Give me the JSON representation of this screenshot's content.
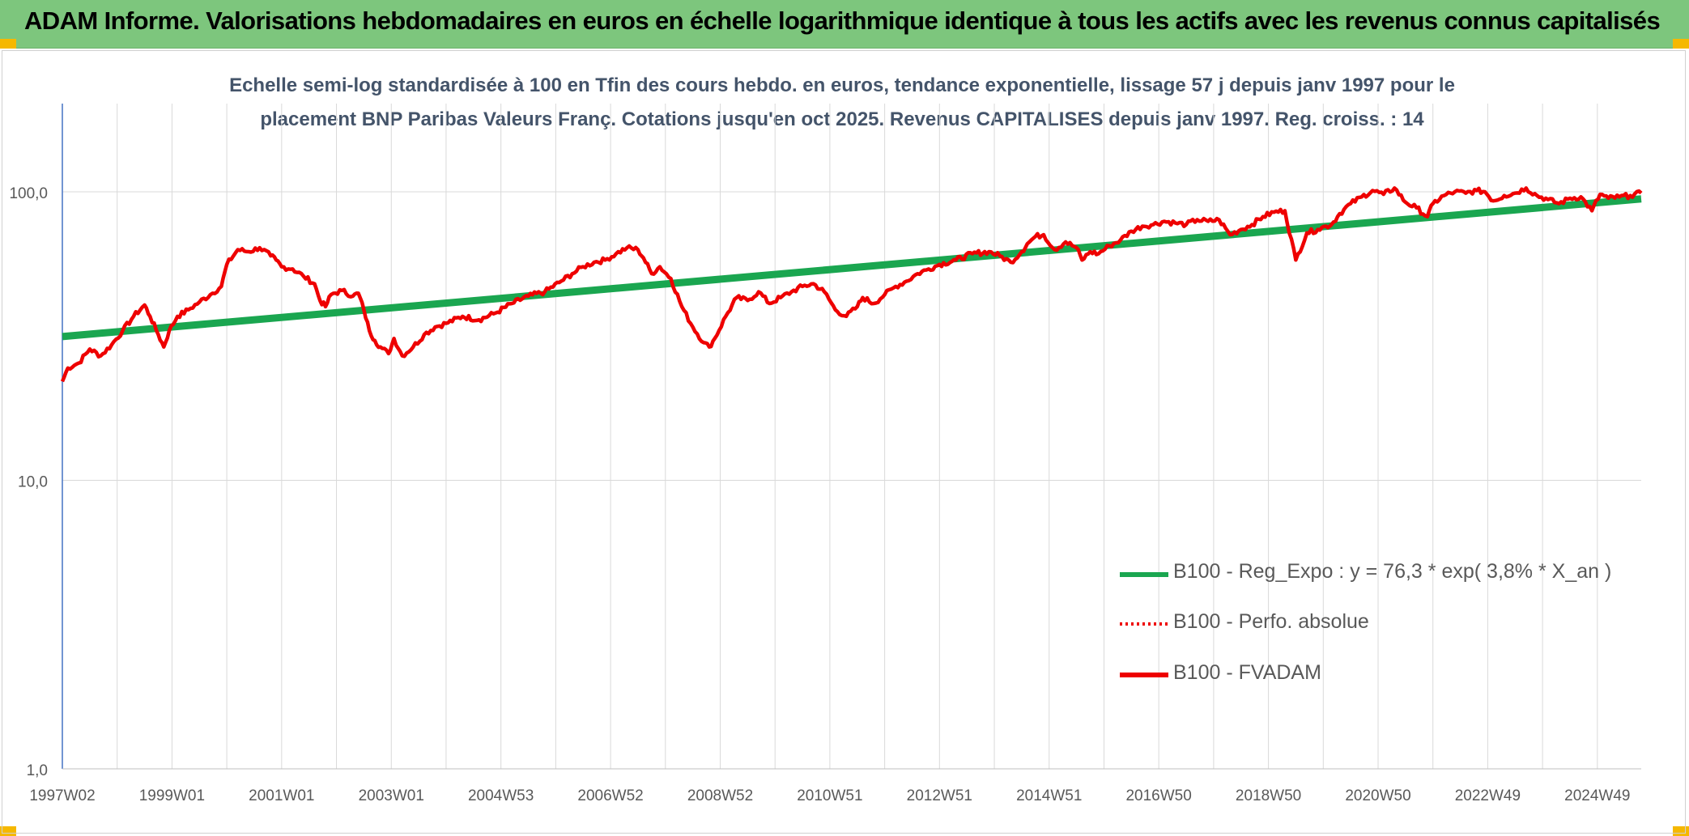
{
  "header": {
    "title": "ADAM Informe. Valorisations hebdomadaires en euros en échelle logarithmique identique à tous les actifs avec les revenus connus capitalisés"
  },
  "colors": {
    "banner": "#7dc67d",
    "accent": "#f5b800",
    "regression": "#1aa650",
    "fvadam": "#ee0000",
    "perfo": "#ee0000",
    "axis": "#4472c4",
    "grid": "#d9d9d9",
    "subtitle": "#44546a"
  },
  "chart_data": {
    "type": "line",
    "subtitle_line1": "Echelle semi-log standardisée à 100 en Tfin des cours hebdo. en euros, tendance exponentielle, lissage 57 j depuis janv 1997 pour le",
    "subtitle_line2": "placement BNP Paribas Valeurs Franç. Cotations jusqu'en oct 2025. Revenus CAPITALISES depuis janv 1997. Reg. croiss. : 14",
    "yscale": "log",
    "ylim": [
      1,
      200
    ],
    "y_ticks": [
      1,
      10,
      100
    ],
    "y_tick_labels": [
      "1,0",
      "10,0",
      "100,0"
    ],
    "xlim": [
      1997.0,
      2025.8
    ],
    "x_ticks": [
      1997.0,
      1999.0,
      2001.0,
      2003.0,
      2005.0,
      2007.0,
      2009.0,
      2011.0,
      2013.0,
      2015.0,
      2017.0,
      2019.0,
      2021.0,
      2023.0,
      2025.0
    ],
    "x_tick_labels": [
      "1997W02",
      "1999W01",
      "2001W01",
      "2003W01",
      "2004W53",
      "2006W52",
      "2008W52",
      "2010W51",
      "2012W51",
      "2014W51",
      "2016W50",
      "2018W50",
      "2020W50",
      "2022W49",
      "2024W49"
    ],
    "grid": true,
    "legend": "bottom-right",
    "series": [
      {
        "name": "B100 - Reg_Expo : y = 76,3 * exp( 3,8% *  X_an )",
        "style": "solid-thick",
        "color": "#1aa650",
        "x": [
          1997.0,
          2025.8
        ],
        "values": [
          31.5,
          94.5
        ]
      },
      {
        "name": "B100 - Perfo. absolue",
        "style": "dotted",
        "color": "#ee0000",
        "x": [],
        "values": []
      },
      {
        "name": "B100 - FVADAM",
        "style": "solid",
        "color": "#ee0000",
        "x": [
          1997.0,
          1997.1,
          1997.3,
          1997.5,
          1997.7,
          1997.9,
          1998.1,
          1998.3,
          1998.5,
          1998.6,
          1998.75,
          1998.85,
          1998.95,
          1999.1,
          1999.3,
          1999.5,
          1999.7,
          1999.9,
          2000.0,
          2000.2,
          2000.4,
          2000.6,
          2000.8,
          2000.9,
          2001.0,
          2001.2,
          2001.4,
          2001.6,
          2001.7,
          2001.8,
          2001.9,
          2002.1,
          2002.3,
          2002.4,
          2002.5,
          2002.6,
          2002.7,
          2002.8,
          2002.95,
          2003.05,
          2003.2,
          2003.4,
          2003.6,
          2003.8,
          2004.0,
          2004.3,
          2004.6,
          2004.9,
          2005.2,
          2005.5,
          2005.8,
          2006.1,
          2006.3,
          2006.5,
          2006.7,
          2006.9,
          2007.1,
          2007.3,
          2007.5,
          2007.6,
          2007.75,
          2007.9,
          2008.1,
          2008.3,
          2008.5,
          2008.7,
          2008.8,
          2008.9,
          2009.1,
          2009.3,
          2009.5,
          2009.7,
          2009.9,
          2010.1,
          2010.3,
          2010.5,
          2010.7,
          2010.9,
          2011.1,
          2011.3,
          2011.5,
          2011.6,
          2011.8,
          2012.0,
          2012.2,
          2012.4,
          2012.6,
          2012.8,
          2013.0,
          2013.3,
          2013.6,
          2013.9,
          2014.1,
          2014.3,
          2014.5,
          2014.6,
          2014.75,
          2014.9,
          2015.1,
          2015.3,
          2015.5,
          2015.6,
          2015.75,
          2015.9,
          2016.1,
          2016.3,
          2016.5,
          2016.7,
          2016.9,
          2017.1,
          2017.3,
          2017.5,
          2017.7,
          2017.9,
          2018.1,
          2018.3,
          2018.5,
          2018.7,
          2018.9,
          2019.1,
          2019.3,
          2019.5,
          2019.7,
          2019.9,
          2020.05,
          2020.15,
          2020.3,
          2020.5,
          2020.7,
          2020.9,
          2021.1,
          2021.3,
          2021.5,
          2021.7,
          2021.9,
          2022.0,
          2022.2,
          2022.4,
          2022.6,
          2022.8,
          2022.95,
          2023.1,
          2023.3,
          2023.5,
          2023.7,
          2023.9,
          2024.1,
          2024.3,
          2024.5,
          2024.7,
          2024.9,
          2025.05,
          2025.2,
          2025.4,
          2025.6,
          2025.8
        ],
        "values": [
          22,
          24.5,
          25.5,
          28.5,
          27,
          29.5,
          33,
          37,
          40.5,
          37,
          32,
          29,
          33,
          37,
          39,
          41.5,
          44,
          47,
          56,
          63,
          62,
          64,
          60,
          58,
          55,
          54,
          51,
          48,
          42,
          40,
          44,
          45.5,
          43.5,
          44.5,
          39,
          33,
          30.5,
          29,
          27.5,
          31,
          27,
          29,
          32,
          34,
          35,
          37,
          36,
          38,
          41,
          43.5,
          45,
          49,
          52,
          55,
          57,
          58,
          61,
          64,
          63,
          59,
          52,
          55,
          50,
          40,
          34,
          30,
          29,
          31,
          37,
          43,
          42,
          45,
          41,
          43,
          45,
          47,
          48,
          45,
          39,
          37,
          40,
          43,
          41,
          44,
          47,
          49,
          52,
          54,
          56,
          58,
          61,
          62,
          60,
          57,
          62,
          66,
          70,
          71,
          63,
          67,
          64,
          58,
          62,
          61,
          65,
          68,
          73,
          76,
          77,
          79,
          78,
          77,
          80,
          79,
          80,
          71,
          74,
          77,
          82,
          85,
          86,
          58,
          72,
          74,
          76,
          77,
          84,
          91,
          96,
          101,
          98,
          103,
          92,
          88,
          82,
          91,
          97,
          100,
          99,
          101,
          100,
          93,
          97,
          99,
          103,
          97,
          94,
          91,
          95,
          96,
          86,
          98,
          95,
          96,
          97,
          99
        ]
      }
    ]
  }
}
